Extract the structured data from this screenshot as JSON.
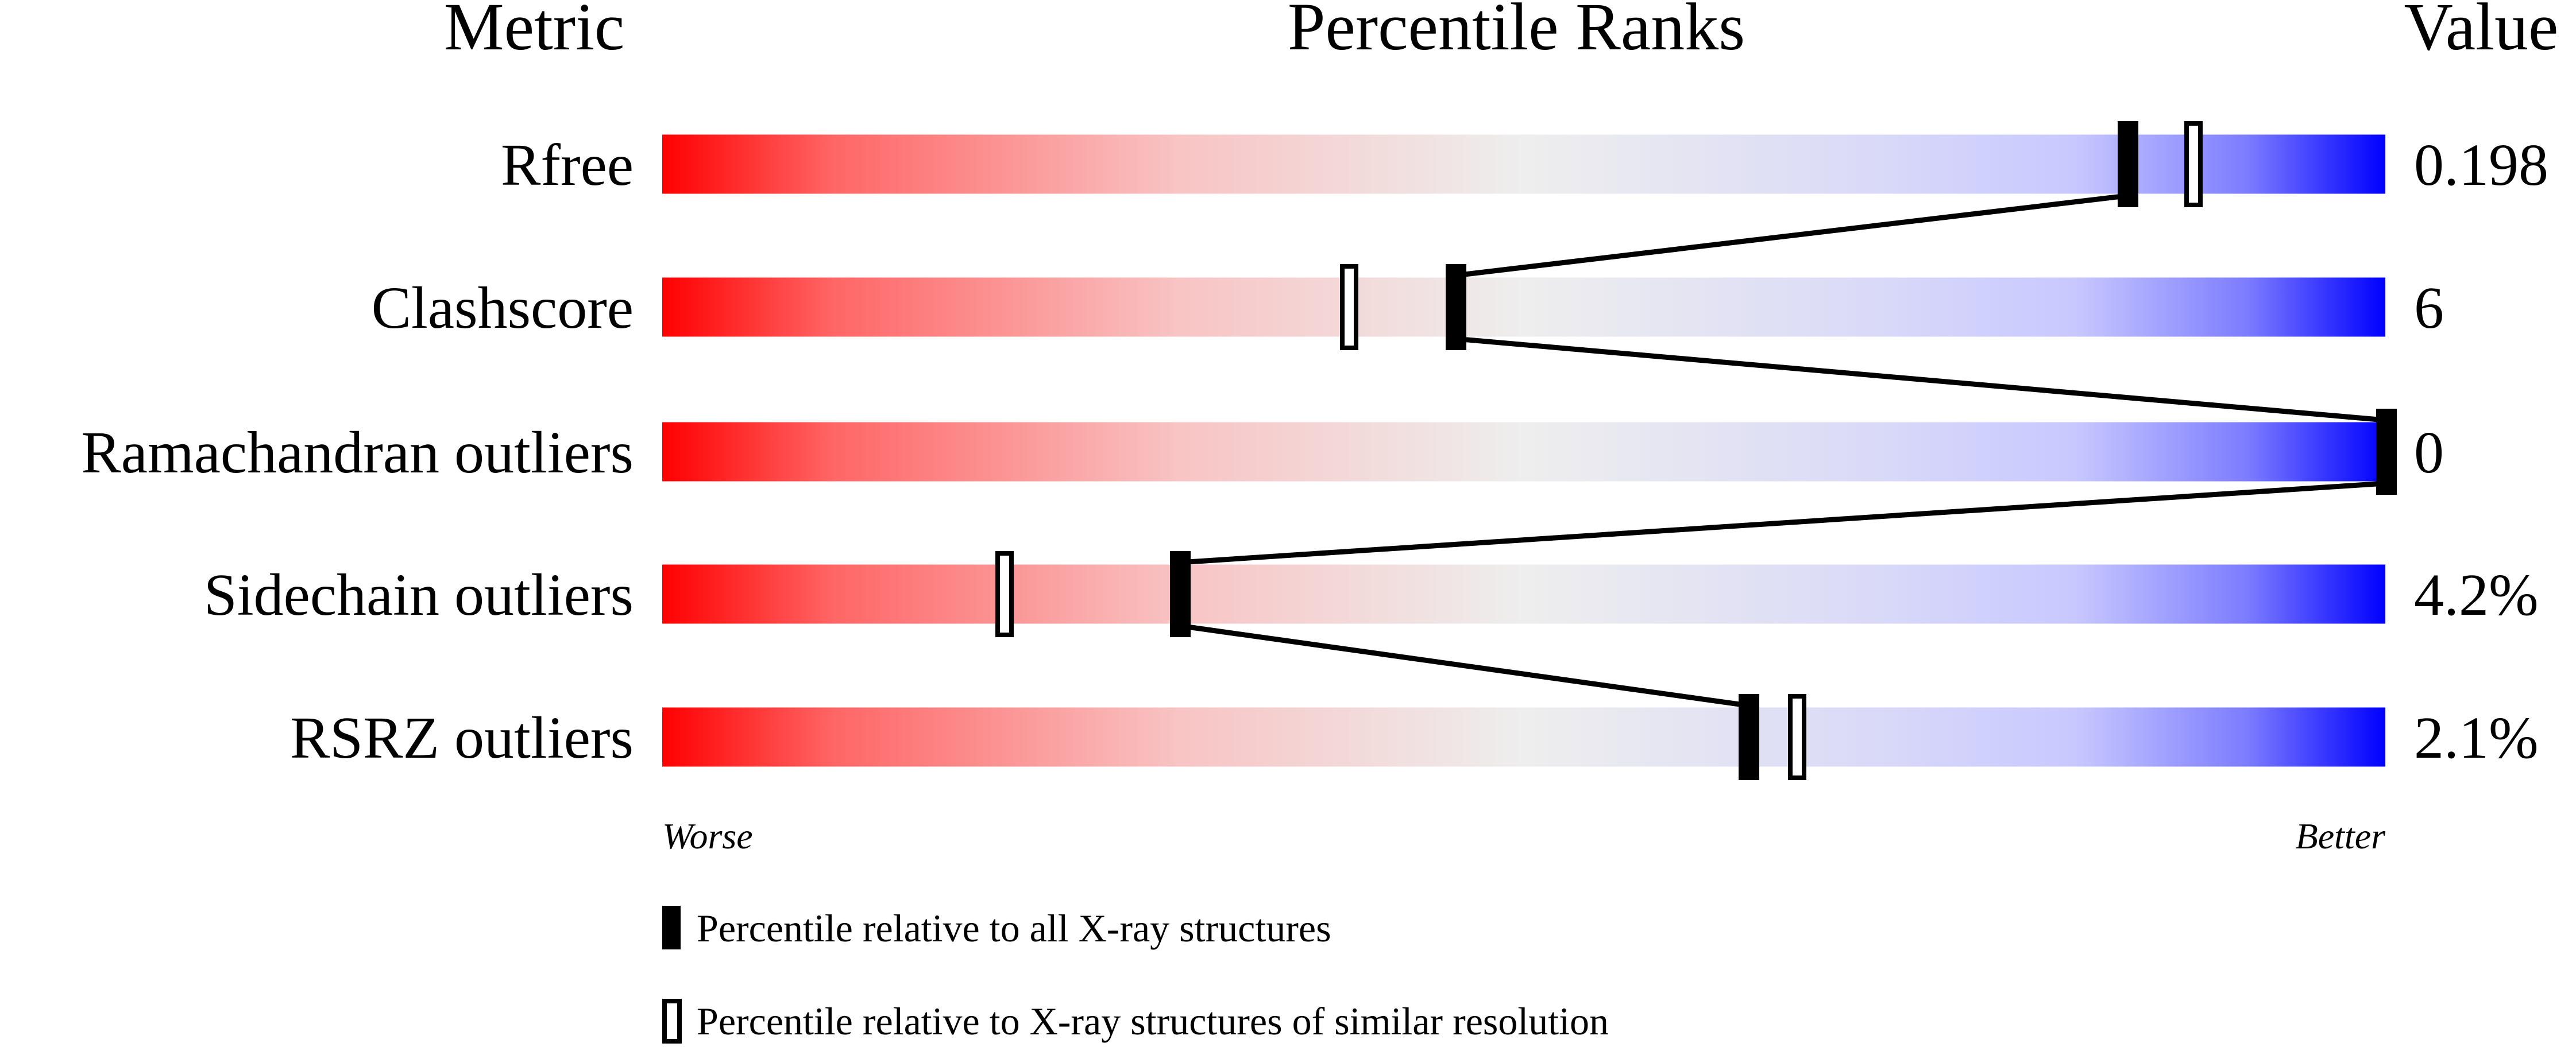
{
  "chart_data": {
    "type": "percentile-ranks",
    "headers": {
      "metric": "Metric",
      "ranks": "Percentile Ranks",
      "value": "Value"
    },
    "xlim": [
      0,
      100
    ],
    "scale_labels": {
      "low": "Worse",
      "high": "Better"
    },
    "gradient_colors": {
      "worse": "#ff0000",
      "middle": "#eeeeee",
      "better": "#0000ff"
    },
    "metrics": [
      {
        "name": "Rfree",
        "value": "0.198",
        "percentile_all": 85,
        "percentile_similar": 89
      },
      {
        "name": "Clashscore",
        "value": "6",
        "percentile_all": 46,
        "percentile_similar": 40
      },
      {
        "name": "Ramachandran outliers",
        "value": "0",
        "percentile_all": 100,
        "percentile_similar": 100
      },
      {
        "name": "Sidechain outliers",
        "value": "4.2%",
        "percentile_all": 30,
        "percentile_similar": 20
      },
      {
        "name": "RSRZ outliers",
        "value": "2.1%",
        "percentile_all": 63,
        "percentile_similar": 66
      }
    ],
    "legend": [
      {
        "marker": "filled",
        "label": "Percentile relative to all X-ray structures"
      },
      {
        "marker": "open",
        "label": "Percentile relative to X-ray structures of similar resolution"
      }
    ]
  }
}
